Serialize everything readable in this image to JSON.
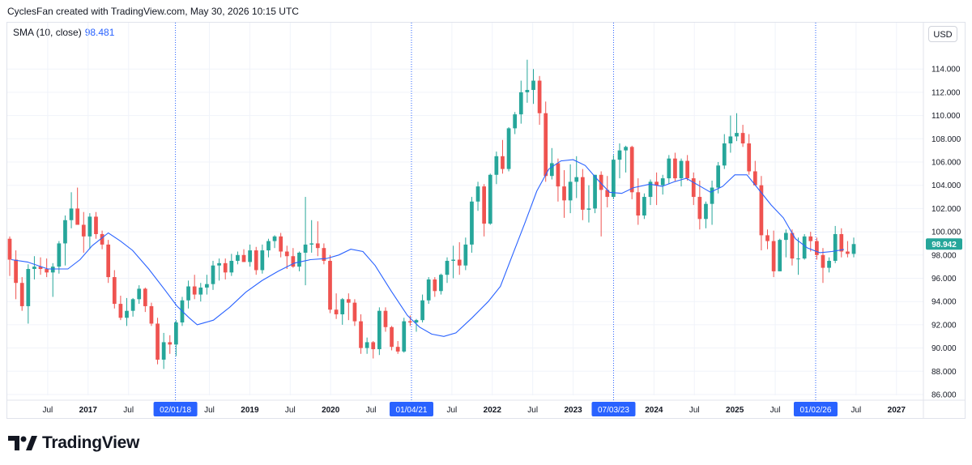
{
  "header": {
    "attribution": "CyclesFan created with TradingView.com, May 30, 2026 10:15 UTC"
  },
  "legend": {
    "label": "SMA (10, close)",
    "value": "98.481"
  },
  "currency_button": "USD",
  "logo_text": "TradingView",
  "colors": {
    "up": "#26a69a",
    "down": "#ef5350",
    "sma": "#2962ff",
    "marker_flag": "#2962ff",
    "last_price": "#26a69a"
  },
  "chart_data": {
    "type": "candlestick",
    "symbol_note": "weekly-style candles with SMA overlay",
    "y_axis": {
      "side": "right",
      "min": 86.0,
      "max": 115.0,
      "step": 2.0,
      "tick_labels": [
        "86.000",
        "88.000",
        "90.000",
        "92.000",
        "94.000",
        "96.000",
        "98.000",
        "100.000",
        "102.000",
        "104.000",
        "106.000",
        "108.000",
        "110.000",
        "112.000",
        "114.000"
      ]
    },
    "last_price": {
      "label": "98.942",
      "value": 98.942
    },
    "x_axis": {
      "start": 2016.0,
      "end": 2027.333,
      "ticks": [
        {
          "label": "Jul",
          "t": 2016.5,
          "bold": false
        },
        {
          "label": "2017",
          "t": 2017.0,
          "bold": true
        },
        {
          "label": "Jul",
          "t": 2017.5,
          "bold": false
        },
        {
          "label": "Jul",
          "t": 2018.5,
          "bold": false
        },
        {
          "label": "2019",
          "t": 2019.0,
          "bold": true
        },
        {
          "label": "Jul",
          "t": 2019.5,
          "bold": false
        },
        {
          "label": "2020",
          "t": 2020.0,
          "bold": true
        },
        {
          "label": "Jul",
          "t": 2020.5,
          "bold": false
        },
        {
          "label": "Jul",
          "t": 2021.5,
          "bold": false
        },
        {
          "label": "2022",
          "t": 2022.0,
          "bold": true
        },
        {
          "label": "Jul",
          "t": 2022.5,
          "bold": false
        },
        {
          "label": "2023",
          "t": 2023.0,
          "bold": true
        },
        {
          "label": "2024",
          "t": 2024.0,
          "bold": true
        },
        {
          "label": "Jul",
          "t": 2024.5,
          "bold": false
        },
        {
          "label": "2025",
          "t": 2025.0,
          "bold": true
        },
        {
          "label": "Jul",
          "t": 2025.5,
          "bold": false
        },
        {
          "label": "Jul",
          "t": 2026.5,
          "bold": false
        },
        {
          "label": "2027",
          "t": 2027.0,
          "bold": true
        }
      ]
    },
    "cycle_markers": [
      {
        "label": "02/01/18",
        "t": 2018.08
      },
      {
        "label": "01/04/21",
        "t": 2021.0
      },
      {
        "label": "07/03/23",
        "t": 2023.5
      },
      {
        "label": "01/02/26",
        "t": 2026.0
      }
    ],
    "candles_ohlc": [
      [
        99.4,
        99.6,
        96.2,
        97.6
      ],
      [
        97.6,
        98.4,
        94.2,
        95.6
      ],
      [
        95.6,
        96.1,
        93.2,
        93.6
      ],
      [
        93.6,
        97.2,
        92.1,
        96.8
      ],
      [
        96.8,
        97.9,
        95.9,
        97.0
      ],
      [
        97.0,
        97.8,
        96.3,
        96.8
      ],
      [
        96.8,
        97.7,
        96.1,
        96.5
      ],
      [
        96.5,
        97.3,
        94.4,
        97.0
      ],
      [
        97.0,
        99.2,
        96.4,
        99.0
      ],
      [
        99.0,
        101.4,
        97.1,
        101.0
      ],
      [
        101.0,
        103.4,
        100.3,
        102.0
      ],
      [
        102.0,
        103.8,
        100.6,
        100.6
      ],
      [
        100.6,
        101.7,
        98.2,
        99.6
      ],
      [
        99.6,
        101.6,
        98.5,
        101.3
      ],
      [
        101.3,
        101.7,
        99.4,
        99.8
      ],
      [
        99.8,
        100.1,
        98.5,
        98.9
      ],
      [
        98.9,
        99.3,
        95.6,
        96.1
      ],
      [
        96.1,
        96.7,
        93.4,
        93.8
      ],
      [
        93.8,
        94.5,
        92.4,
        92.6
      ],
      [
        92.6,
        94.3,
        91.9,
        93.2
      ],
      [
        93.2,
        94.3,
        92.7,
        94.2
      ],
      [
        94.2,
        95.4,
        93.8,
        95.1
      ],
      [
        95.1,
        95.2,
        93.1,
        93.6
      ],
      [
        93.6,
        93.9,
        91.9,
        92.1
      ],
      [
        92.1,
        92.6,
        88.6,
        89.0
      ],
      [
        89.0,
        91.3,
        88.2,
        90.5
      ],
      [
        90.5,
        91.1,
        89.5,
        90.3
      ],
      [
        90.3,
        92.4,
        89.3,
        92.2
      ],
      [
        92.2,
        94.4,
        91.9,
        94.1
      ],
      [
        94.1,
        95.8,
        93.4,
        95.3
      ],
      [
        95.3,
        96.3,
        94.2,
        94.6
      ],
      [
        94.6,
        95.6,
        94.0,
        95.2
      ],
      [
        95.2,
        96.3,
        94.6,
        95.5
      ],
      [
        95.5,
        97.5,
        95.0,
        97.1
      ],
      [
        97.1,
        97.7,
        95.8,
        97.3
      ],
      [
        97.3,
        97.7,
        95.9,
        96.5
      ],
      [
        96.5,
        98.1,
        96.2,
        97.5
      ],
      [
        97.5,
        98.3,
        97.2,
        98.0
      ],
      [
        98.0,
        98.5,
        97.4,
        97.4
      ],
      [
        97.4,
        98.9,
        97.0,
        98.4
      ],
      [
        98.4,
        98.7,
        96.3,
        96.7
      ],
      [
        96.7,
        98.9,
        96.4,
        98.4
      ],
      [
        98.4,
        99.4,
        97.8,
        99.2
      ],
      [
        99.2,
        99.7,
        98.6,
        99.6
      ],
      [
        99.6,
        99.9,
        97.8,
        98.3
      ],
      [
        98.3,
        98.8,
        96.8,
        97.9
      ],
      [
        97.9,
        98.6,
        96.9,
        97.0
      ],
      [
        97.0,
        98.3,
        96.6,
        98.2
      ],
      [
        98.2,
        103.0,
        95.4,
        98.9
      ],
      [
        98.9,
        101.0,
        98.2,
        99.0
      ],
      [
        99.0,
        100.9,
        97.9,
        98.6
      ],
      [
        98.6,
        99.0,
        97.2,
        97.5
      ],
      [
        97.5,
        98.0,
        93.0,
        93.3
      ],
      [
        93.3,
        94.7,
        92.5,
        92.9
      ],
      [
        92.9,
        94.3,
        92.0,
        94.2
      ],
      [
        94.2,
        94.7,
        92.4,
        93.9
      ],
      [
        93.9,
        94.2,
        91.9,
        92.3
      ],
      [
        92.3,
        92.9,
        89.5,
        90.0
      ],
      [
        90.0,
        90.9,
        89.5,
        90.5
      ],
      [
        90.5,
        90.6,
        89.1,
        89.9
      ],
      [
        89.9,
        93.5,
        89.4,
        93.2
      ],
      [
        93.2,
        93.5,
        91.4,
        91.8
      ],
      [
        91.8,
        91.9,
        89.8,
        90.1
      ],
      [
        90.1,
        90.6,
        89.5,
        89.7
      ],
      [
        89.7,
        92.6,
        89.6,
        92.3
      ],
      [
        92.3,
        92.8,
        91.9,
        92.2
      ],
      [
        92.2,
        92.5,
        91.4,
        92.4
      ],
      [
        92.4,
        94.6,
        92.2,
        94.1
      ],
      [
        94.1,
        96.1,
        93.8,
        95.9
      ],
      [
        95.9,
        96.1,
        94.4,
        94.9
      ],
      [
        94.9,
        96.4,
        94.6,
        96.3
      ],
      [
        96.3,
        97.8,
        95.6,
        97.5
      ],
      [
        97.5,
        98.8,
        96.0,
        97.6
      ],
      [
        97.6,
        99.1,
        96.3,
        97.1
      ],
      [
        97.1,
        99.5,
        96.7,
        98.9
      ],
      [
        98.9,
        103.0,
        98.2,
        102.6
      ],
      [
        102.6,
        104.3,
        101.8,
        103.9
      ],
      [
        103.9,
        104.1,
        99.6,
        100.7
      ],
      [
        100.7,
        105.0,
        100.6,
        104.9
      ],
      [
        104.9,
        106.9,
        104.1,
        106.5
      ],
      [
        106.5,
        107.9,
        105.0,
        105.4
      ],
      [
        105.4,
        109.0,
        105.2,
        108.9
      ],
      [
        108.9,
        110.3,
        108.4,
        110.1
      ],
      [
        110.1,
        113.0,
        109.3,
        112.0
      ],
      [
        112.0,
        114.8,
        111.1,
        112.2
      ],
      [
        112.2,
        114.0,
        111.0,
        113.0
      ],
      [
        113.0,
        113.4,
        109.2,
        110.2
      ],
      [
        110.2,
        111.2,
        104.3,
        104.8
      ],
      [
        104.8,
        107.2,
        104.5,
        105.9
      ],
      [
        105.9,
        106.3,
        102.6,
        103.9
      ],
      [
        103.9,
        105.3,
        101.2,
        102.7
      ],
      [
        102.7,
        105.8,
        101.6,
        104.3
      ],
      [
        104.3,
        106.5,
        102.9,
        104.7
      ],
      [
        104.7,
        105.4,
        101.0,
        101.9
      ],
      [
        101.9,
        104.0,
        100.8,
        102.0
      ],
      [
        102.0,
        104.9,
        101.6,
        104.9
      ],
      [
        104.9,
        105.2,
        99.6,
        103.6
      ],
      [
        103.6,
        104.8,
        102.1,
        103.0
      ],
      [
        103.0,
        106.6,
        102.8,
        106.2
      ],
      [
        106.2,
        107.6,
        104.6,
        107.0
      ],
      [
        107.0,
        107.4,
        105.1,
        107.3
      ],
      [
        107.3,
        107.4,
        102.8,
        103.4
      ],
      [
        103.4,
        104.6,
        100.6,
        101.4
      ],
      [
        101.4,
        103.3,
        101.1,
        103.0
      ],
      [
        103.0,
        104.5,
        102.3,
        104.3
      ],
      [
        104.3,
        105.1,
        102.3,
        104.0
      ],
      [
        104.0,
        104.9,
        103.2,
        104.6
      ],
      [
        104.6,
        106.6,
        104.1,
        106.3
      ],
      [
        106.3,
        106.8,
        104.3,
        104.6
      ],
      [
        104.6,
        106.3,
        103.9,
        106.1
      ],
      [
        106.1,
        106.6,
        104.4,
        104.6
      ],
      [
        104.6,
        105.1,
        102.3,
        103.0
      ],
      [
        103.0,
        104.4,
        100.2,
        101.1
      ],
      [
        101.1,
        102.6,
        100.3,
        102.4
      ],
      [
        102.4,
        104.4,
        100.6,
        103.8
      ],
      [
        103.8,
        106.0,
        103.3,
        105.7
      ],
      [
        105.7,
        108.4,
        105.4,
        107.6
      ],
      [
        107.6,
        110.0,
        106.8,
        108.2
      ],
      [
        108.2,
        110.2,
        107.8,
        108.5
      ],
      [
        108.5,
        109.2,
        107.3,
        107.6
      ],
      [
        107.6,
        108.4,
        104.9,
        105.2
      ],
      [
        105.2,
        106.1,
        104.6,
        104.0
      ],
      [
        104.0,
        104.8,
        98.4,
        99.7
      ],
      [
        99.7,
        100.2,
        98.5,
        99.2
      ],
      [
        99.2,
        100.1,
        96.1,
        96.6
      ],
      [
        96.6,
        99.4,
        96.6,
        99.3
      ],
      [
        99.3,
        100.2,
        97.8,
        99.9
      ],
      [
        99.9,
        100.2,
        97.1,
        97.7
      ],
      [
        97.7,
        99.5,
        96.3,
        97.7
      ],
      [
        97.7,
        99.8,
        97.6,
        99.6
      ],
      [
        99.6,
        100.0,
        98.3,
        99.2
      ],
      [
        99.2,
        99.5,
        97.6,
        98.0
      ],
      [
        98.0,
        98.6,
        95.6,
        96.9
      ],
      [
        96.9,
        97.8,
        96.5,
        97.5
      ],
      [
        97.5,
        100.5,
        97.3,
        99.8
      ],
      [
        99.8,
        100.3,
        97.8,
        98.3
      ],
      [
        98.3,
        99.2,
        97.8,
        98.1
      ],
      [
        98.1,
        99.5,
        97.8,
        98.942
      ]
    ],
    "sma_points": [
      [
        2016.05,
        97.6
      ],
      [
        2016.25,
        97.4
      ],
      [
        2016.5,
        96.8
      ],
      [
        2016.75,
        96.8
      ],
      [
        2016.9,
        97.6
      ],
      [
        2017.05,
        98.8
      ],
      [
        2017.25,
        99.9
      ],
      [
        2017.4,
        99.2
      ],
      [
        2017.55,
        98.4
      ],
      [
        2017.75,
        96.8
      ],
      [
        2017.95,
        95.0
      ],
      [
        2018.1,
        93.6
      ],
      [
        2018.25,
        92.6
      ],
      [
        2018.35,
        92.0
      ],
      [
        2018.55,
        92.4
      ],
      [
        2018.75,
        93.5
      ],
      [
        2018.95,
        94.8
      ],
      [
        2019.15,
        95.8
      ],
      [
        2019.35,
        96.6
      ],
      [
        2019.55,
        97.3
      ],
      [
        2019.75,
        97.6
      ],
      [
        2019.95,
        97.7
      ],
      [
        2020.1,
        98.0
      ],
      [
        2020.25,
        98.5
      ],
      [
        2020.4,
        98.3
      ],
      [
        2020.55,
        97.1
      ],
      [
        2020.75,
        94.9
      ],
      [
        2020.95,
        92.8
      ],
      [
        2021.1,
        91.8
      ],
      [
        2021.25,
        91.2
      ],
      [
        2021.4,
        91.0
      ],
      [
        2021.55,
        91.3
      ],
      [
        2021.75,
        92.6
      ],
      [
        2021.95,
        94.0
      ],
      [
        2022.1,
        95.3
      ],
      [
        2022.25,
        98.0
      ],
      [
        2022.4,
        100.7
      ],
      [
        2022.55,
        103.5
      ],
      [
        2022.7,
        105.4
      ],
      [
        2022.85,
        106.1
      ],
      [
        2023.0,
        106.2
      ],
      [
        2023.15,
        105.7
      ],
      [
        2023.3,
        104.5
      ],
      [
        2023.45,
        103.4
      ],
      [
        2023.6,
        103.3
      ],
      [
        2023.75,
        103.8
      ],
      [
        2023.95,
        104.1
      ],
      [
        2024.1,
        103.9
      ],
      [
        2024.25,
        104.3
      ],
      [
        2024.4,
        104.6
      ],
      [
        2024.55,
        104.0
      ],
      [
        2024.7,
        103.4
      ],
      [
        2024.85,
        103.9
      ],
      [
        2025.0,
        104.9
      ],
      [
        2025.15,
        104.9
      ],
      [
        2025.3,
        103.6
      ],
      [
        2025.45,
        102.3
      ],
      [
        2025.6,
        101.2
      ],
      [
        2025.75,
        99.4
      ],
      [
        2025.9,
        98.6
      ],
      [
        2026.05,
        98.2
      ],
      [
        2026.2,
        98.3
      ],
      [
        2026.35,
        98.481
      ]
    ]
  }
}
